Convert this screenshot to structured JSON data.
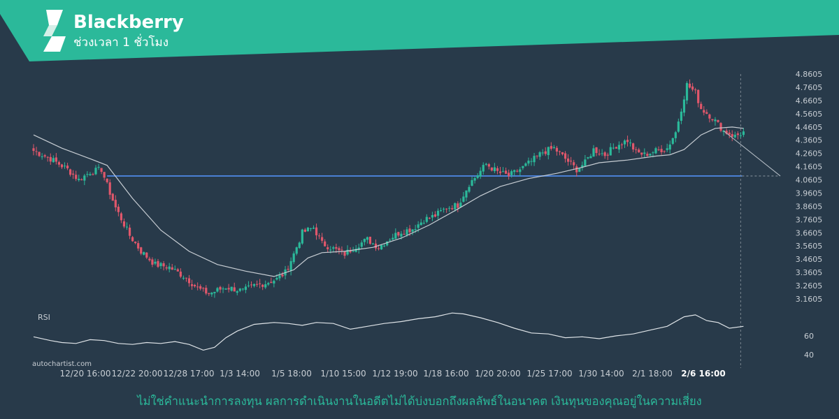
{
  "header": {
    "title": "Blackberry",
    "subtitle": "ช่วงเวลา 1 ชั่วโมง"
  },
  "footer": {
    "disclaimer": "ไม่ใช่คำแนะนำการลงทุน ผลการดำเนินงานในอดีตไม่ได้บ่งบอกถึงผลลัพธ์ในอนาคต เงินทุนของคุณอยู่ในความเสี่ยง",
    "watermark": "autochartist.com"
  },
  "colors": {
    "background": "#283a4a",
    "banner": "#2bb99a",
    "up_candle": "#2bb99a",
    "down_candle": "#e0576b",
    "support_line": "#4a7fd4",
    "moving_average": "#c8ced4",
    "axis_text": "#c8ced4",
    "disclaimer": "#2bb99a"
  },
  "chart_data": [
    {
      "type": "candlestick",
      "title": "Blackberry",
      "subtitle": "ช่วงเวลา 1 ชั่วโมง",
      "x_tick_labels": [
        "12/20 16:00",
        "12/22 20:00",
        "12/28 17:00",
        "1/3 14:00",
        "1/5 18:00",
        "1/10 15:00",
        "1/12 19:00",
        "1/18 16:00",
        "1/20 20:00",
        "1/25 17:00",
        "1/30 14:00",
        "2/1 18:00",
        "2/6 16:00"
      ],
      "highlighted_x": "2/6 16:00",
      "y_tick_labels": [
        "4.8605",
        "4.7605",
        "4.6605",
        "4.5605",
        "4.4605",
        "4.3605",
        "4.2605",
        "4.1605",
        "4.0605",
        "3.9605",
        "3.8605",
        "3.7605",
        "3.6605",
        "3.5605",
        "3.4605",
        "3.3605",
        "3.2605",
        "3.1605"
      ],
      "ylim": [
        3.1605,
        4.8605
      ],
      "close_path": [
        [
          0,
          4.28
        ],
        [
          6,
          4.22
        ],
        [
          12,
          4.14
        ],
        [
          16,
          4.06
        ],
        [
          20,
          4.12
        ],
        [
          24,
          4.14
        ],
        [
          26,
          4.02
        ],
        [
          29,
          3.85
        ],
        [
          34,
          3.64
        ],
        [
          38,
          3.52
        ],
        [
          43,
          3.42
        ],
        [
          48,
          3.4
        ],
        [
          54,
          3.32
        ],
        [
          58,
          3.24
        ],
        [
          62,
          3.2
        ],
        [
          68,
          3.25
        ],
        [
          74,
          3.22
        ],
        [
          78,
          3.26
        ],
        [
          82,
          3.28
        ],
        [
          86,
          3.31
        ],
        [
          89,
          3.36
        ],
        [
          92,
          3.5
        ],
        [
          95,
          3.66
        ],
        [
          99,
          3.7
        ],
        [
          102,
          3.58
        ],
        [
          106,
          3.54
        ],
        [
          110,
          3.5
        ],
        [
          114,
          3.56
        ],
        [
          118,
          3.61
        ],
        [
          122,
          3.55
        ],
        [
          126,
          3.62
        ],
        [
          130,
          3.67
        ],
        [
          134,
          3.69
        ],
        [
          138,
          3.76
        ],
        [
          142,
          3.79
        ],
        [
          146,
          3.85
        ],
        [
          150,
          3.87
        ],
        [
          154,
          4.03
        ],
        [
          157,
          4.1
        ],
        [
          160,
          4.18
        ],
        [
          164,
          4.12
        ],
        [
          168,
          4.09
        ],
        [
          172,
          4.14
        ],
        [
          176,
          4.2
        ],
        [
          180,
          4.27
        ],
        [
          184,
          4.3
        ],
        [
          188,
          4.22
        ],
        [
          192,
          4.14
        ],
        [
          195,
          4.19
        ],
        [
          198,
          4.29
        ],
        [
          202,
          4.25
        ],
        [
          206,
          4.32
        ],
        [
          210,
          4.36
        ],
        [
          213,
          4.27
        ],
        [
          216,
          4.25
        ],
        [
          220,
          4.28
        ],
        [
          224,
          4.3
        ],
        [
          227,
          4.42
        ],
        [
          231,
          4.78
        ],
        [
          234,
          4.72
        ],
        [
          236,
          4.6
        ],
        [
          240,
          4.53
        ],
        [
          244,
          4.43
        ],
        [
          248,
          4.39
        ],
        [
          251,
          4.42
        ]
      ],
      "moving_average": [
        [
          0,
          4.4
        ],
        [
          10,
          4.3
        ],
        [
          20,
          4.22
        ],
        [
          26,
          4.17
        ],
        [
          35,
          3.92
        ],
        [
          45,
          3.68
        ],
        [
          55,
          3.52
        ],
        [
          65,
          3.42
        ],
        [
          75,
          3.37
        ],
        [
          85,
          3.33
        ],
        [
          92,
          3.38
        ],
        [
          97,
          3.47
        ],
        [
          102,
          3.51
        ],
        [
          110,
          3.52
        ],
        [
          120,
          3.55
        ],
        [
          130,
          3.62
        ],
        [
          140,
          3.72
        ],
        [
          150,
          3.84
        ],
        [
          158,
          3.94
        ],
        [
          165,
          4.01
        ],
        [
          175,
          4.07
        ],
        [
          185,
          4.11
        ],
        [
          193,
          4.15
        ],
        [
          200,
          4.19
        ],
        [
          210,
          4.21
        ],
        [
          220,
          4.24
        ],
        [
          225,
          4.25
        ],
        [
          230,
          4.29
        ],
        [
          236,
          4.4
        ],
        [
          241,
          4.45
        ],
        [
          247,
          4.46
        ],
        [
          251,
          4.45
        ]
      ],
      "support_level": 4.09,
      "support_start_index": 26,
      "forecast": {
        "from": [
          244,
          4.43
        ],
        "to": [
          264,
          4.09
        ]
      }
    },
    {
      "type": "line",
      "title": "RSI",
      "y_tick_labels": [
        "60",
        "40"
      ],
      "ylim": [
        35,
        90
      ],
      "points": [
        [
          0,
          59
        ],
        [
          6,
          55
        ],
        [
          10,
          53
        ],
        [
          15,
          52
        ],
        [
          20,
          56
        ],
        [
          25,
          55
        ],
        [
          30,
          52
        ],
        [
          35,
          51
        ],
        [
          40,
          53
        ],
        [
          45,
          52
        ],
        [
          50,
          54
        ],
        [
          55,
          51
        ],
        [
          60,
          45
        ],
        [
          64,
          48
        ],
        [
          68,
          58
        ],
        [
          72,
          65
        ],
        [
          78,
          72
        ],
        [
          85,
          74
        ],
        [
          90,
          73
        ],
        [
          95,
          71
        ],
        [
          100,
          74
        ],
        [
          106,
          73
        ],
        [
          112,
          67
        ],
        [
          118,
          70
        ],
        [
          124,
          73
        ],
        [
          130,
          75
        ],
        [
          136,
          78
        ],
        [
          142,
          80
        ],
        [
          148,
          84
        ],
        [
          152,
          83
        ],
        [
          158,
          79
        ],
        [
          164,
          74
        ],
        [
          170,
          68
        ],
        [
          176,
          63
        ],
        [
          182,
          62
        ],
        [
          188,
          58
        ],
        [
          194,
          59
        ],
        [
          200,
          57
        ],
        [
          206,
          60
        ],
        [
          212,
          62
        ],
        [
          218,
          66
        ],
        [
          224,
          70
        ],
        [
          230,
          80
        ],
        [
          234,
          82
        ],
        [
          238,
          76
        ],
        [
          242,
          74
        ],
        [
          246,
          68
        ],
        [
          251,
          70
        ]
      ]
    }
  ]
}
